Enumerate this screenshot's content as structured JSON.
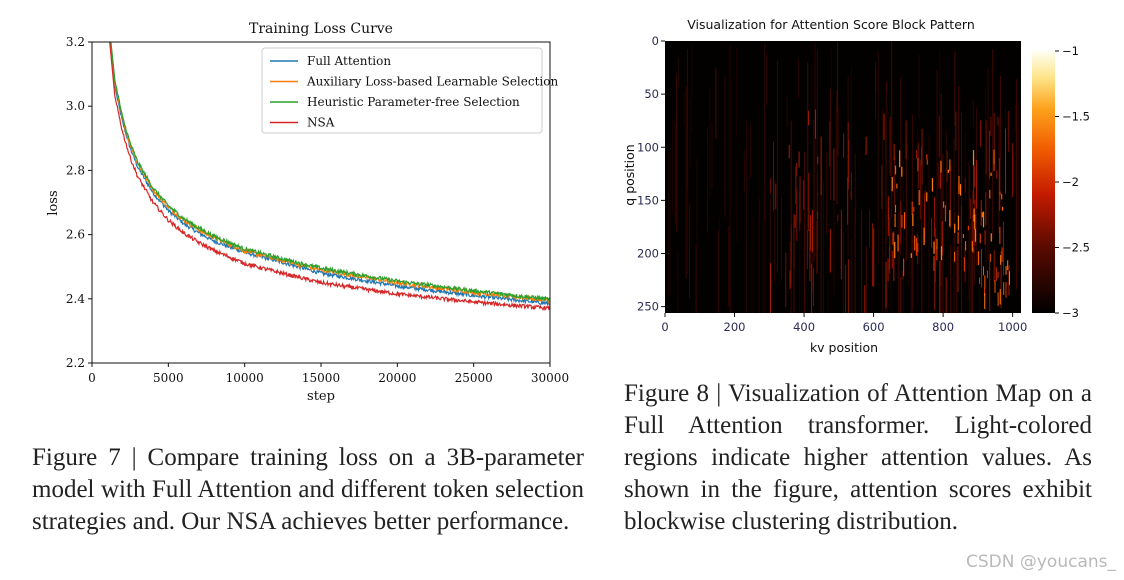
{
  "chart_data": [
    {
      "type": "line",
      "title": "Training Loss Curve",
      "xlabel": "step",
      "ylabel": "loss",
      "xlim": [
        0,
        30000
      ],
      "ylim": [
        2.2,
        3.2
      ],
      "xticks": [
        0,
        5000,
        10000,
        15000,
        20000,
        25000,
        30000
      ],
      "yticks": [
        2.2,
        2.4,
        2.6,
        2.8,
        3.0,
        3.2
      ],
      "grid": false,
      "legend_position": "top-right",
      "x": [
        1000,
        1500,
        2000,
        2500,
        3000,
        4000,
        5000,
        6000,
        7000,
        8000,
        10000,
        12000,
        15000,
        20000,
        25000,
        30000
      ],
      "series": [
        {
          "name": "Full Attention",
          "color": "#1f77b4",
          "values": [
            3.3,
            3.06,
            2.95,
            2.87,
            2.81,
            2.73,
            2.675,
            2.635,
            2.605,
            2.58,
            2.545,
            2.52,
            2.48,
            2.44,
            2.41,
            2.385
          ]
        },
        {
          "name": "Auxiliary Loss-based Learnable Selection",
          "color": "#ff7f0e",
          "values": [
            3.31,
            3.07,
            2.96,
            2.88,
            2.82,
            2.74,
            2.685,
            2.645,
            2.615,
            2.59,
            2.55,
            2.525,
            2.49,
            2.45,
            2.42,
            2.395
          ]
        },
        {
          "name": "Heuristic Parameter-free Selection",
          "color": "#2ca02c",
          "values": [
            3.31,
            3.08,
            2.965,
            2.885,
            2.825,
            2.745,
            2.69,
            2.65,
            2.62,
            2.595,
            2.555,
            2.53,
            2.495,
            2.455,
            2.425,
            2.398
          ]
        },
        {
          "name": "NSA",
          "color": "#d62728",
          "values": [
            3.28,
            3.03,
            2.92,
            2.84,
            2.78,
            2.7,
            2.645,
            2.605,
            2.575,
            2.55,
            2.51,
            2.485,
            2.45,
            2.415,
            2.39,
            2.37
          ]
        }
      ]
    },
    {
      "type": "heatmap",
      "title": "Visualization for Attention Score Block Pattern",
      "xlabel": "kv position",
      "ylabel": "q position",
      "xlim": [
        0,
        1024
      ],
      "ylim": [
        256,
        0
      ],
      "xticks": [
        0,
        200,
        400,
        600,
        800,
        1000
      ],
      "yticks": [
        0,
        50,
        100,
        150,
        200,
        250
      ],
      "colorbar": {
        "range": [
          -3,
          -1
        ],
        "ticks": [
          "−1",
          "−1.5",
          "−2",
          "−2.5",
          "−3"
        ]
      },
      "colormap": "afmhot"
    }
  ],
  "captions": {
    "fig7": "Figure 7 | Compare training loss on a 3B-parameter model with Full Attention and different token selection strategies and. Our NSA achieves better performance.",
    "fig8": "Figure 8 | Visualization of Attention Map on a Full Attention transformer. Light-colored regions indicate higher attention values. As shown in the figure, attention scores exhibit blockwise clustering distribution."
  },
  "watermark": "CSDN @youcans_"
}
